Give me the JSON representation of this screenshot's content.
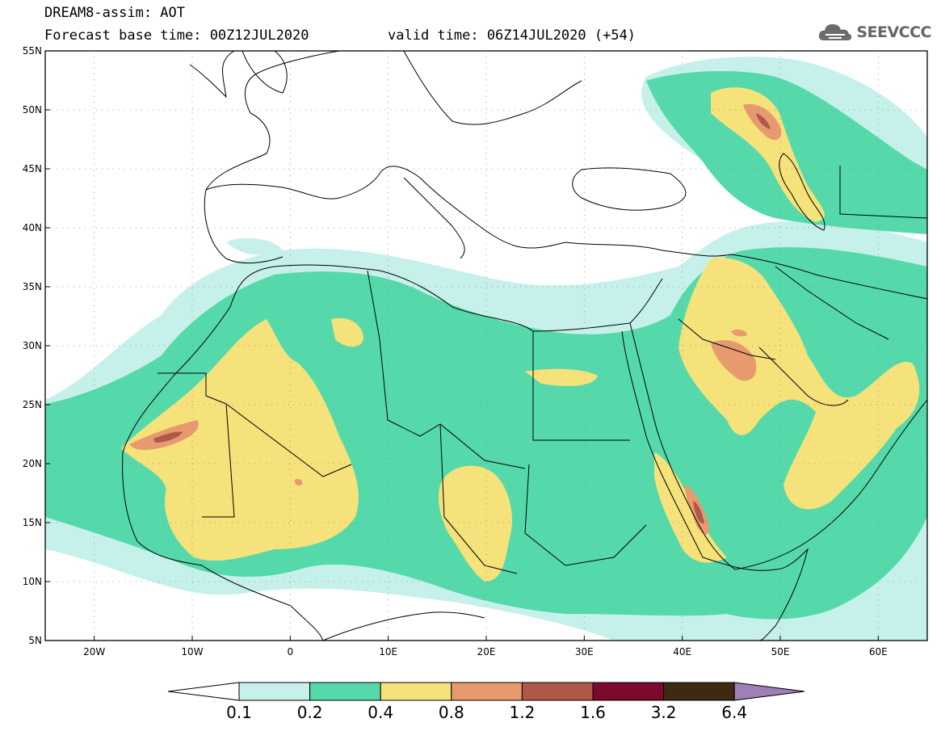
{
  "header": {
    "title": "DREAM8-assim: AOT",
    "base_time": "Forecast base time: 00Z12JUL2020",
    "valid_time": "valid time: 06Z14JUL2020 (+54)",
    "logo_text": "SEEVCCC"
  },
  "map": {
    "lon_range": [
      -25,
      65
    ],
    "lat_range": [
      5,
      55
    ],
    "lat_ticks": [
      "55N",
      "50N",
      "45N",
      "40N",
      "35N",
      "30N",
      "25N",
      "20N",
      "15N",
      "10N",
      "5N"
    ],
    "lon_ticks": [
      "20W",
      "10W",
      "0",
      "10E",
      "20E",
      "30E",
      "40E",
      "50E",
      "60E"
    ]
  },
  "colorbar": {
    "labels": [
      "0.1",
      "0.2",
      "0.4",
      "0.8",
      "1.2",
      "1.6",
      "3.2",
      "6.4"
    ],
    "colors": [
      "#c6f0ea",
      "#55d9ab",
      "#f5e27a",
      "#e79a6e",
      "#b0584a",
      "#7b0a2d",
      "#3e2a12"
    ],
    "under_color": "#ffffff",
    "over_color": "#9e7fb6"
  }
}
